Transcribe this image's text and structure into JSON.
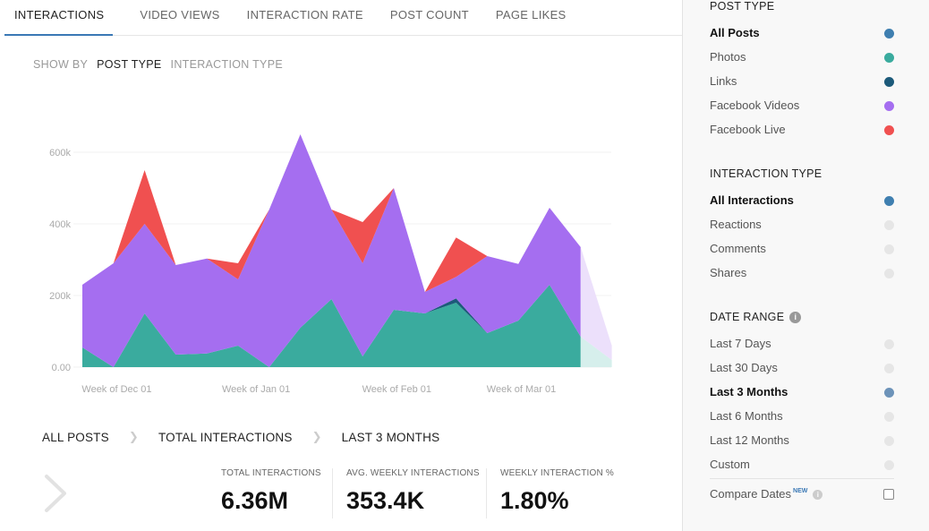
{
  "tabs": [
    "INTERACTIONS",
    "VIDEO VIEWS",
    "INTERACTION RATE",
    "POST COUNT",
    "PAGE LIKES"
  ],
  "active_tab": "INTERACTIONS",
  "show_by": {
    "label": "SHOW BY",
    "options": [
      "POST TYPE",
      "INTERACTION TYPE"
    ],
    "active": "POST TYPE"
  },
  "breadcrumb": [
    "ALL POSTS",
    "TOTAL INTERACTIONS",
    "LAST 3 MONTHS"
  ],
  "stats": [
    {
      "label": "TOTAL INTERACTIONS",
      "value": "6.36M"
    },
    {
      "label": "AVG. WEEKLY INTERACTIONS",
      "value": "353.4K"
    },
    {
      "label": "WEEKLY INTERACTION %",
      "value": "1.80%"
    }
  ],
  "sidebar": {
    "post_type": {
      "title": "POST TYPE",
      "items": [
        {
          "label": "All Posts",
          "color": "#3f7fb0",
          "selected": true
        },
        {
          "label": "Photos",
          "color": "#3aab9e",
          "selected": false
        },
        {
          "label": "Links",
          "color": "#1c5a7a",
          "selected": false
        },
        {
          "label": "Facebook Videos",
          "color": "#a56ef0",
          "selected": false
        },
        {
          "label": "Facebook Live",
          "color": "#f05050",
          "selected": false
        }
      ]
    },
    "interaction_type": {
      "title": "INTERACTION TYPE",
      "items": [
        {
          "label": "All Interactions",
          "color": "#3f7fb0",
          "selected": true
        },
        {
          "label": "Reactions",
          "color": "#e6e6e6",
          "selected": false
        },
        {
          "label": "Comments",
          "color": "#e6e6e6",
          "selected": false
        },
        {
          "label": "Shares",
          "color": "#e6e6e6",
          "selected": false
        }
      ]
    },
    "date_range": {
      "title": "DATE RANGE",
      "info_icon": "i",
      "items": [
        {
          "label": "Last 7 Days",
          "color": "#e6e6e6",
          "selected": false
        },
        {
          "label": "Last 30 Days",
          "color": "#e6e6e6",
          "selected": false
        },
        {
          "label": "Last 3 Months",
          "color": "#6d93b9",
          "selected": true
        },
        {
          "label": "Last 6 Months",
          "color": "#e6e6e6",
          "selected": false
        },
        {
          "label": "Last 12 Months",
          "color": "#e6e6e6",
          "selected": false
        },
        {
          "label": "Custom",
          "color": "#e6e6e6",
          "selected": false
        }
      ]
    },
    "compare": {
      "label": "Compare Dates",
      "badge": "NEW",
      "checked": false
    }
  },
  "chart_data": {
    "type": "area",
    "stacked": true,
    "x": [
      0,
      1,
      2,
      3,
      4,
      5,
      6,
      7,
      8,
      9,
      10,
      11,
      12,
      13,
      14,
      15,
      16,
      17
    ],
    "x_ticks": [
      {
        "x": 0.5,
        "label": "Week of Dec 01"
      },
      {
        "x": 5,
        "label": "Week of Jan 01"
      },
      {
        "x": 9.5,
        "label": "Week of Feb 01"
      },
      {
        "x": 13.5,
        "label": "Week of Mar 01"
      }
    ],
    "y_ticks": [
      {
        "y": 0,
        "label": "0.00"
      },
      {
        "y": 200000,
        "label": "200k"
      },
      {
        "y": 400000,
        "label": "400k"
      },
      {
        "y": 600000,
        "label": "600k"
      }
    ],
    "ylim": [
      0,
      650000
    ],
    "projected_from": 16,
    "series": [
      {
        "key": "photos",
        "color": "#3aab9e",
        "projected_color": "#d6efec",
        "values": [
          55000,
          0,
          150000,
          35000,
          38000,
          60000,
          0,
          110000,
          190000,
          30000,
          160000,
          150000,
          180000,
          95000,
          130000,
          230000,
          85000,
          20000
        ]
      },
      {
        "key": "links",
        "color": "#1c5a7a",
        "projected_color": "#d6efec",
        "values": [
          0,
          0,
          0,
          0,
          0,
          0,
          0,
          0,
          0,
          0,
          0,
          0,
          12000,
          0,
          0,
          0,
          0,
          0
        ]
      },
      {
        "key": "facebook_videos",
        "color": "#a56ef0",
        "projected_color": "#ece0fb",
        "values": [
          175000,
          290000,
          250000,
          250000,
          265000,
          185000,
          440000,
          540000,
          250000,
          260000,
          340000,
          60000,
          60000,
          215000,
          158000,
          215000,
          250000,
          40000
        ]
      },
      {
        "key": "facebook_live",
        "color": "#f05050",
        "projected_color": "#ece0fb",
        "values": [
          0,
          0,
          150000,
          0,
          0,
          45000,
          0,
          0,
          0,
          115000,
          0,
          0,
          110000,
          0,
          0,
          0,
          0,
          0
        ]
      }
    ]
  }
}
